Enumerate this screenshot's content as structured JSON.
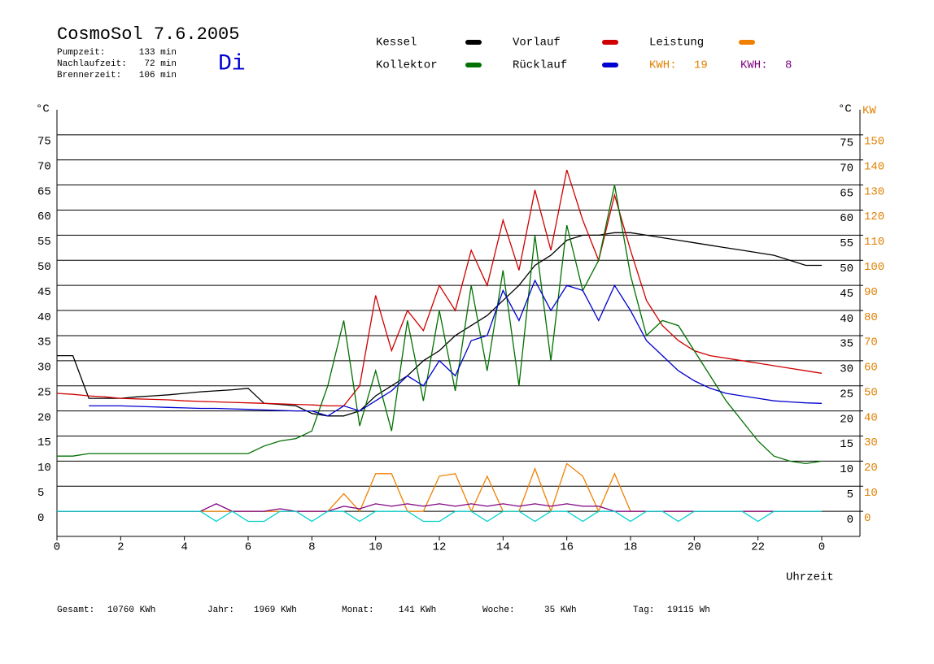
{
  "chart_data": {
    "type": "line",
    "title": "CosmoSol 7.6.2005",
    "weekday": "Di",
    "stats": [
      {
        "label": "Pumpzeit:",
        "value": "133 min"
      },
      {
        "label": "Nachlaufzeit:",
        "value": "72 min"
      },
      {
        "label": "Brennerzeit:",
        "value": "106 min"
      }
    ],
    "totals": [
      {
        "label": "Gesamt:",
        "value": "10760 KWh"
      },
      {
        "label": "Jahr:",
        "value": "1969 KWh"
      },
      {
        "label": "Monat:",
        "value": "141 KWh"
      },
      {
        "label": "Woche:",
        "value": "35 KWh"
      },
      {
        "label": "Tag:",
        "value": "19115 Wh"
      }
    ],
    "y_label": "°C",
    "y2_unit": "°C",
    "y2_label": "KW",
    "x_label": "Uhrzeit",
    "kwh": [
      {
        "label": "KWH:",
        "value": 19,
        "color": "#e08000"
      },
      {
        "label": "KWH:",
        "value": 8,
        "color": "#800080"
      }
    ],
    "x": [
      0,
      0.5,
      1,
      1.5,
      2,
      2.5,
      3,
      3.5,
      4,
      4.5,
      5,
      5.5,
      6,
      6.5,
      7,
      7.5,
      8,
      8.5,
      9,
      9.5,
      10,
      10.5,
      11,
      11.5,
      12,
      12.5,
      13,
      13.5,
      14,
      14.5,
      15,
      15.5,
      16,
      16.5,
      17,
      17.5,
      18,
      18.5,
      19,
      19.5,
      20,
      20.5,
      21,
      21.5,
      22,
      22.5,
      23,
      23.5,
      24
    ],
    "series": [
      {
        "name": "Kessel",
        "color": "#000000",
        "values": [
          31,
          31,
          22.5,
          22.5,
          22.5,
          22.8,
          23,
          23.2,
          23.5,
          23.8,
          24,
          24.2,
          24.5,
          21.5,
          21.3,
          21,
          19.5,
          19,
          19,
          20,
          23,
          25,
          27,
          30,
          32,
          35,
          37,
          39,
          42,
          45,
          49,
          51,
          54,
          55,
          55,
          55.5,
          55.5,
          55,
          54.5,
          54,
          53.5,
          53,
          52.5,
          52,
          51.5,
          51,
          50,
          49,
          49
        ]
      },
      {
        "name": "Vorlauf",
        "color": "#d00000",
        "values": [
          23.5,
          23.3,
          23,
          22.8,
          22.5,
          22.4,
          22.3,
          22.2,
          22,
          21.9,
          21.8,
          21.7,
          21.6,
          21.5,
          21.4,
          21.3,
          21.2,
          21,
          21,
          25,
          43,
          32,
          40,
          36,
          45,
          40,
          52,
          45,
          58,
          48,
          64,
          52,
          68,
          58,
          50,
          63,
          52,
          42,
          37,
          34,
          32,
          31,
          30.5,
          30,
          29.5,
          29,
          28.5,
          28,
          27.5
        ]
      },
      {
        "name": "Leistung",
        "color": "#f08000",
        "axis": "y2",
        "values": [
          0,
          0,
          0,
          0,
          0,
          0,
          0,
          0,
          0,
          0,
          0,
          0,
          0,
          0,
          0,
          0,
          0,
          0,
          7,
          0,
          15,
          15,
          0,
          0,
          14,
          15,
          0,
          14,
          0,
          0,
          17,
          0,
          19,
          14,
          0,
          15,
          0,
          0,
          0,
          0,
          0,
          0,
          0,
          0,
          0,
          0,
          0,
          0,
          0
        ]
      },
      {
        "name": "Kollektor",
        "color": "#007000",
        "values": [
          11,
          11,
          11.5,
          11.5,
          11.5,
          11.5,
          11.5,
          11.5,
          11.5,
          11.5,
          11.5,
          11.5,
          11.5,
          13,
          14,
          14.5,
          16,
          25,
          38,
          17,
          28,
          16,
          38,
          22,
          40,
          24,
          45,
          28,
          48,
          25,
          55,
          30,
          57,
          44,
          50,
          65,
          47,
          35,
          38,
          37,
          32,
          27,
          22,
          18,
          14,
          11,
          10,
          9.5,
          10
        ]
      },
      {
        "name": "Rücklauf",
        "color": "#0000d0",
        "values": [
          null,
          null,
          21,
          21,
          21,
          20.9,
          20.8,
          20.7,
          20.6,
          20.5,
          20.5,
          20.4,
          20.3,
          20.2,
          20.1,
          20,
          20,
          19,
          21,
          20,
          22,
          24,
          27,
          25,
          30,
          27,
          34,
          35,
          44,
          38,
          46,
          40,
          45,
          44,
          38,
          45,
          40,
          34,
          31,
          28,
          26,
          24.5,
          23.5,
          23,
          22.5,
          22,
          21.8,
          21.6,
          21.5
        ]
      },
      {
        "color": "#800080",
        "axis": "y2",
        "values": [
          0,
          0,
          0,
          0,
          0,
          0,
          0,
          0,
          0,
          0,
          3,
          0,
          0,
          0,
          1,
          0,
          0,
          0,
          2,
          1,
          3,
          2,
          3,
          2,
          3,
          2,
          3,
          2,
          3,
          2,
          3,
          2,
          3,
          2,
          2,
          0,
          0,
          0,
          0,
          0,
          0,
          0,
          0,
          0,
          0,
          0,
          0,
          0,
          0
        ]
      },
      {
        "color": "#00d0d0",
        "values": [
          0,
          0,
          0,
          0,
          0,
          0,
          0,
          0,
          0,
          0,
          -2,
          0,
          -2,
          -2,
          0,
          0,
          -2,
          0,
          0,
          -2,
          0,
          0,
          0,
          -2,
          -2,
          0,
          0,
          -2,
          0,
          0,
          -2,
          0,
          0,
          -2,
          0,
          0,
          -2,
          0,
          0,
          -2,
          0,
          0,
          0,
          0,
          -2,
          0,
          0,
          0,
          0
        ]
      }
    ],
    "xlim": [
      0,
      25.2
    ],
    "xticks": [
      0,
      2,
      4,
      6,
      8,
      10,
      12,
      14,
      16,
      18,
      20,
      22,
      {
        "value": 24,
        "label": "0"
      }
    ],
    "ylim": [
      -5,
      80
    ],
    "yticks": [
      0,
      5,
      10,
      15,
      20,
      25,
      30,
      35,
      40,
      45,
      50,
      55,
      60,
      65,
      70,
      75
    ],
    "y2lim": [
      -10,
      160
    ],
    "y2ticks": [
      0,
      10,
      20,
      30,
      40,
      50,
      60,
      70,
      80,
      90,
      100,
      110,
      120,
      130,
      140,
      150
    ],
    "y2_color": "#e08000",
    "grid": true
  }
}
